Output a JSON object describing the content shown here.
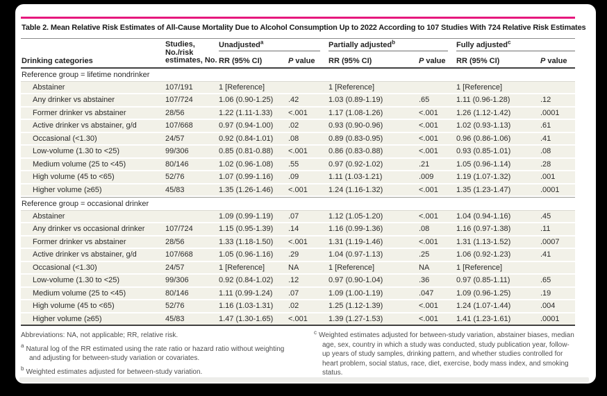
{
  "title": "Table 2. Mean Relative Risk Estimates of All-Cause Mortality Due to Alcohol Consumption Up to 2022 According to 107 Studies With 724 Relative Risk Estimates",
  "header": {
    "drinking": "Drinking categories",
    "studies_lines": [
      "Studies,",
      "No./risk",
      "estimates, No."
    ],
    "groups": [
      {
        "label": "Unadjusted",
        "sup": "a"
      },
      {
        "label": "Partially adjusted",
        "sup": "b"
      },
      {
        "label": "Fully adjusted",
        "sup": "c"
      }
    ],
    "rr_label": "RR (95% CI)",
    "p_label": {
      "italic": "P",
      "rest": "value"
    }
  },
  "sections": [
    {
      "header": "Reference group = lifetime nondrinker",
      "rows": [
        [
          "Abstainer",
          "107/191",
          "1 [Reference]",
          "",
          "1 [Reference]",
          "",
          "1 [Reference]",
          ""
        ],
        [
          "Any drinker vs abstainer",
          "107/724",
          "1.06 (0.90-1.25)",
          ".42",
          "1.03 (0.89-1.19)",
          ".65",
          "1.11 (0.96-1.28)",
          ".12"
        ],
        [
          "Former drinker vs abstainer",
          "28/56",
          "1.22 (1.11-1.33)",
          "<.001",
          "1.17 (1.08-1.26)",
          "<.001",
          "1.26 (1.12-1.42)",
          ".0001"
        ],
        [
          "Active drinker vs abstainer, g/d",
          "107/668",
          "0.97 (0.94-1.00)",
          ".02",
          "0.93 (0.90-0.96)",
          "<.001",
          "1.02 (0.93-1.13)",
          ".61"
        ],
        [
          "Occasional (<1.30)",
          "24/57",
          "0.92 (0.84-1.01)",
          ".08",
          "0.89 (0.83-0.95)",
          "<.001",
          "0.96 (0.86-1.06)",
          ".41"
        ],
        [
          "Low-volume (1.30 to <25)",
          "99/306",
          "0.85 (0.81-0.88)",
          "<.001",
          "0.86 (0.83-0.88)",
          "<.001",
          "0.93 (0.85-1.01)",
          ".08"
        ],
        [
          "Medium volume (25 to <45)",
          "80/146",
          "1.02 (0.96-1.08)",
          ".55",
          "0.97 (0.92-1.02)",
          ".21",
          "1.05 (0.96-1.14)",
          ".28"
        ],
        [
          "High volume (45 to <65)",
          "52/76",
          "1.07 (0.99-1.16)",
          ".09",
          "1.11 (1.03-1.21)",
          ".009",
          "1.19 (1.07-1.32)",
          ".001"
        ],
        [
          "Higher volume (≥65)",
          "45/83",
          "1.35 (1.26-1.46)",
          "<.001",
          "1.24 (1.16-1.32)",
          "<.001",
          "1.35 (1.23-1.47)",
          ".0001"
        ]
      ]
    },
    {
      "header": "Reference group = occasional drinker",
      "rows": [
        [
          "Abstainer",
          "",
          "1.09 (0.99-1.19)",
          ".07",
          "1.12 (1.05-1.20)",
          "<.001",
          "1.04 (0.94-1.16)",
          ".45"
        ],
        [
          "Any drinker vs occasional drinker",
          "107/724",
          "1.15 (0.95-1.39)",
          ".14",
          "1.16 (0.99-1.36)",
          ".08",
          "1.16 (0.97-1.38)",
          ".11"
        ],
        [
          "Former drinker vs abstainer",
          "28/56",
          "1.33 (1.18-1.50)",
          "<.001",
          "1.31 (1.19-1.46)",
          "<.001",
          "1.31 (1.13-1.52)",
          ".0007"
        ],
        [
          "Active drinker vs abstainer, g/d",
          "107/668",
          "1.05 (0.96-1.16)",
          ".29",
          "1.04 (0.97-1.13)",
          ".25",
          "1.06 (0.92-1.23)",
          ".41"
        ],
        [
          "Occasional (<1.30)",
          "24/57",
          "1 [Reference]",
          "NA",
          "1 [Reference]",
          "NA",
          "1 [Reference]",
          ""
        ],
        [
          "Low-volume (1.30 to <25)",
          "99/306",
          "0.92 (0.84-1.02)",
          ".12",
          "0.97 (0.90-1.04)",
          ".36",
          "0.97 (0.85-1.11)",
          ".65"
        ],
        [
          "Medium volume (25 to <45)",
          "80/146",
          "1.11 (0.99-1.24)",
          ".07",
          "1.09 (1.00-1.19)",
          ".047",
          "1.09 (0.96-1.25)",
          ".19"
        ],
        [
          "High volume (45 to <65)",
          "52/76",
          "1.16 (1.03-1.31)",
          ".02",
          "1.25 (1.12-1.39)",
          "<.001",
          "1.24 (1.07-1.44)",
          ".004"
        ],
        [
          "Higher volume (≥65)",
          "45/83",
          "1.47 (1.30-1.65)",
          "<.001",
          "1.39 (1.27-1.53)",
          "<.001",
          "1.41 (1.23-1.61)",
          ".0001"
        ]
      ]
    }
  ],
  "footnotes": {
    "abbreviations": "Abbreviations: NA, not applicable; RR, relative risk.",
    "notes": [
      {
        "sup": "a",
        "text": "Natural log of the RR estimated using the rate ratio or hazard ratio without weighting and adjusting for between-study variation or covariates."
      },
      {
        "sup": "b",
        "text": "Weighted estimates adjusted for between-study variation."
      },
      {
        "sup": "c",
        "text": "Weighted estimates adjusted for between-study variation, abstainer biases, median age, sex, country in which a study was conducted, study publication year, follow-up years of study samples, drinking pattern, and whether studies controlled for heart problem, social status, race, diet, exercise, body mass index, and smoking status."
      }
    ]
  },
  "colors": {
    "accent_pink": "#e6187d",
    "row_beige": "#f2f1e8",
    "rule_dark": "#3f3f3f",
    "footnote_gray": "#4d4d4d",
    "frame_black": "#000000"
  }
}
